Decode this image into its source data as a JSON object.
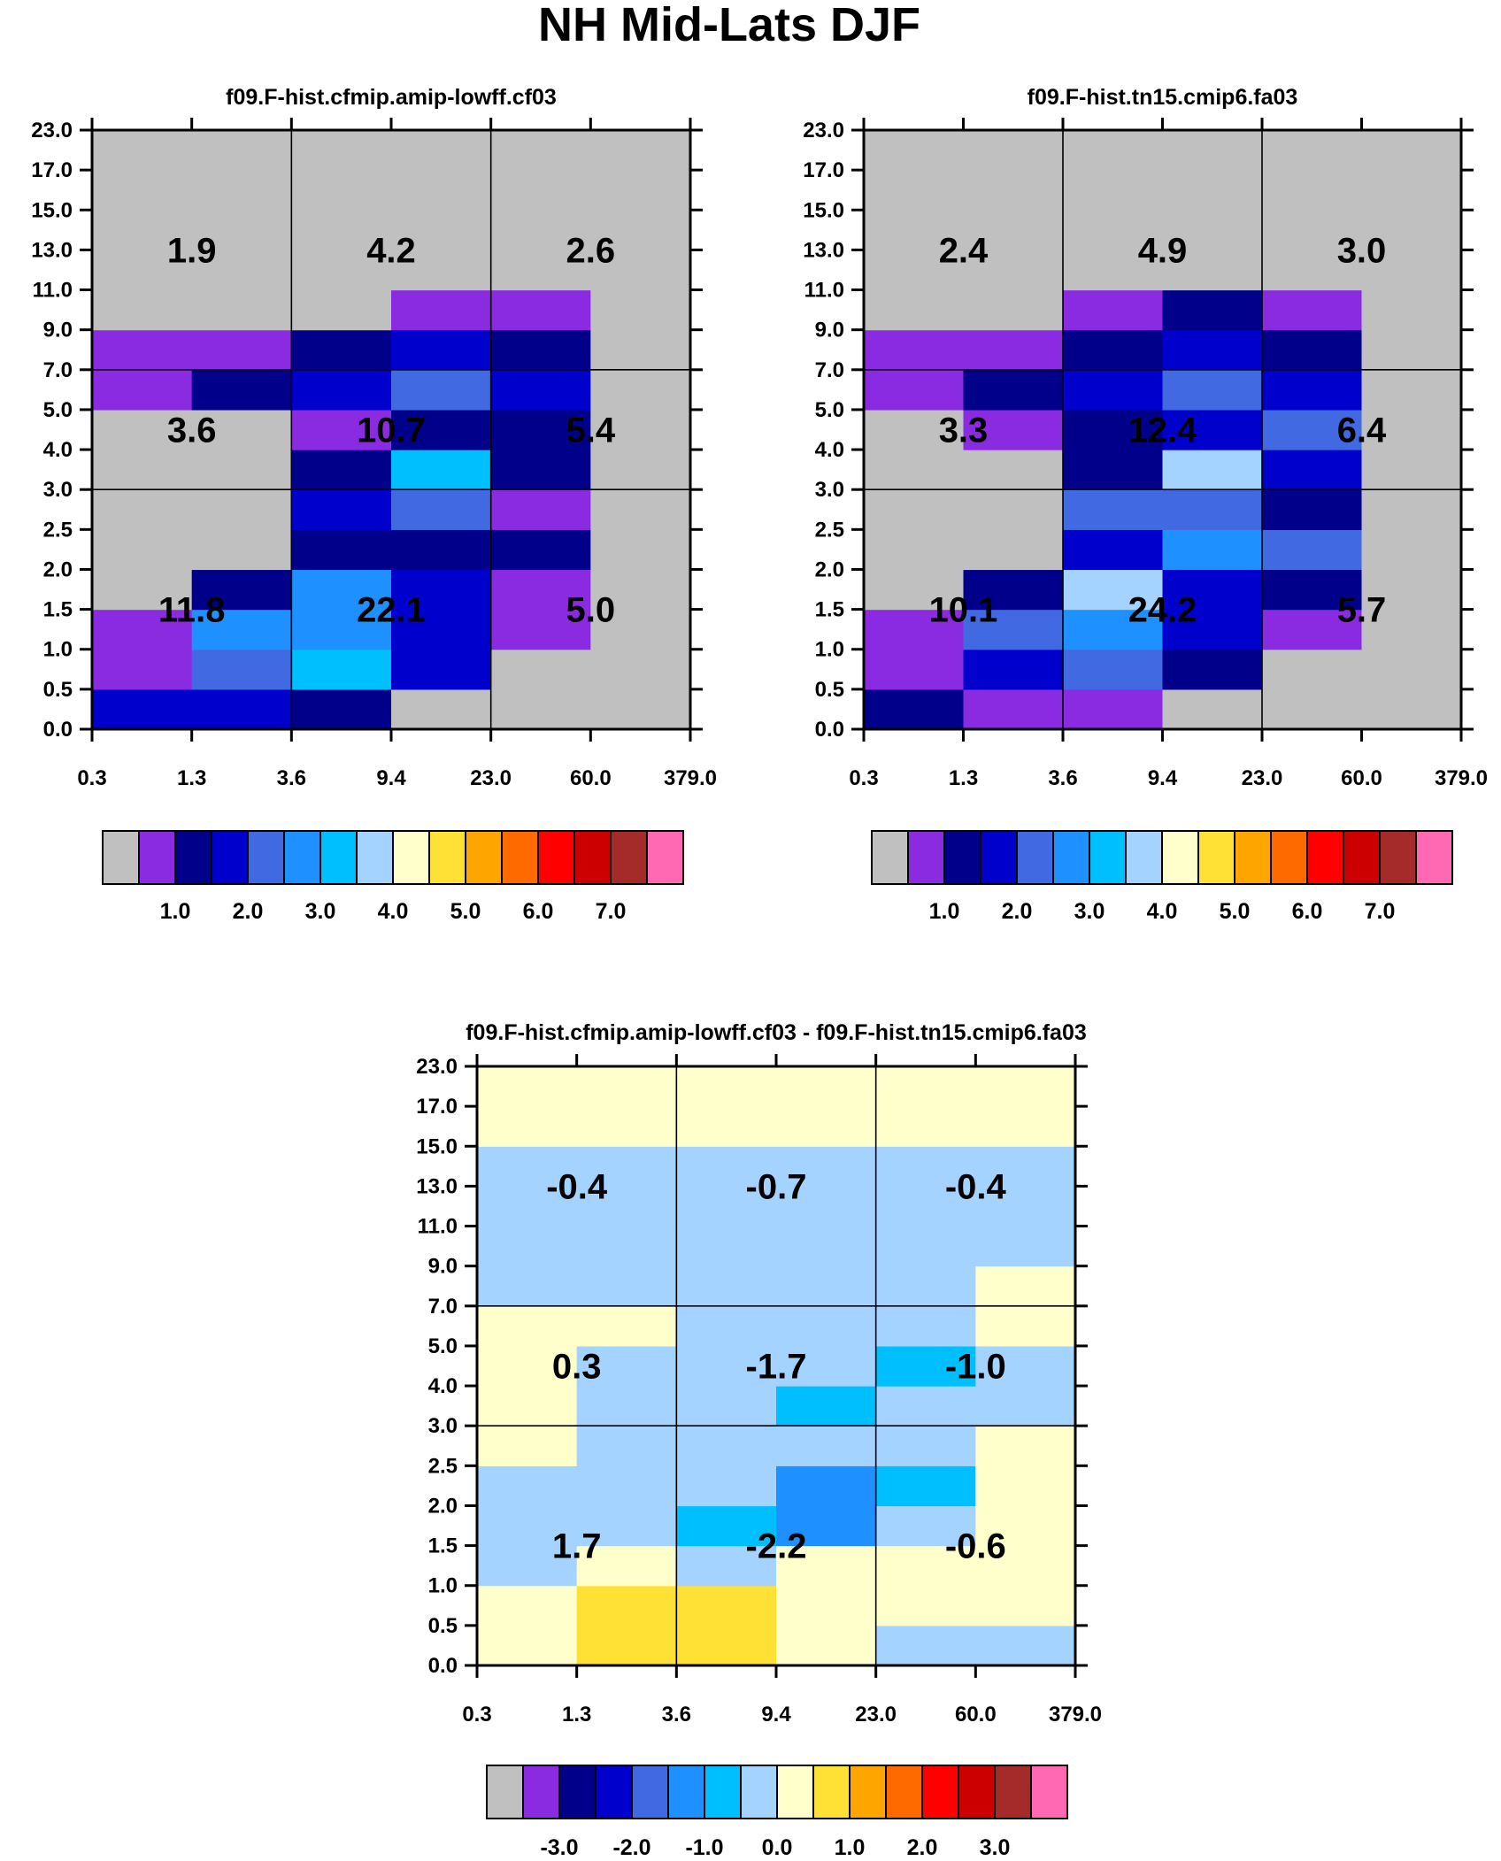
{
  "page": {
    "title": "NH Mid-Lats DJF"
  },
  "colors": {
    "palette": [
      "#c0c0c0",
      "#8a2be2",
      "#00008b",
      "#0000cd",
      "#4169e1",
      "#1e90ff",
      "#00bfff",
      "#a4d3ff",
      "#ffffcc",
      "#ffe135",
      "#ffa500",
      "#ff6a00",
      "#ff0000",
      "#cc0000",
      "#a52a2a",
      "#ff69b4"
    ]
  },
  "axes": {
    "x_ticks": [
      "0.3",
      "1.3",
      "3.6",
      "9.4",
      "23.0",
      "60.0",
      "379.0"
    ],
    "y_ticks": [
      "0.0",
      "0.5",
      "1.0",
      "1.5",
      "2.0",
      "2.5",
      "3.0",
      "4.0",
      "5.0",
      "7.0",
      "9.0",
      "11.0",
      "13.0",
      "15.0",
      "17.0",
      "23.0"
    ]
  },
  "chart_data": [
    {
      "type": "heatmap",
      "title": "f09.F-hist.cfmip.amip-lowff.cf03",
      "x_bin_edges": [
        "0.3",
        "1.3",
        "3.6",
        "9.4",
        "23.0",
        "60.0",
        "379.0"
      ],
      "y_bin_edges": [
        "0.0",
        "0.5",
        "1.0",
        "1.5",
        "2.0",
        "2.5",
        "3.0",
        "4.0",
        "5.0",
        "7.0",
        "9.0",
        "11.0",
        "13.0",
        "15.0",
        "17.0",
        "23.0"
      ],
      "cell_color_index_rows_bottom_to_top": [
        [
          3,
          3,
          2,
          0,
          0,
          0
        ],
        [
          1,
          4,
          6,
          3,
          0,
          0
        ],
        [
          1,
          5,
          5,
          3,
          1,
          0
        ],
        [
          0,
          2,
          5,
          3,
          1,
          0
        ],
        [
          0,
          0,
          2,
          2,
          2,
          0
        ],
        [
          0,
          0,
          3,
          4,
          1,
          0
        ],
        [
          0,
          0,
          2,
          6,
          2,
          0
        ],
        [
          0,
          0,
          1,
          2,
          2,
          0
        ],
        [
          1,
          2,
          3,
          4,
          3,
          0
        ],
        [
          1,
          1,
          2,
          3,
          2,
          0
        ],
        [
          0,
          0,
          0,
          1,
          1,
          0
        ],
        [
          0,
          0,
          0,
          0,
          0,
          0
        ],
        [
          0,
          0,
          0,
          0,
          0,
          0
        ],
        [
          0,
          0,
          0,
          0,
          0,
          0
        ],
        [
          0,
          0,
          0,
          0,
          0,
          0
        ]
      ],
      "box_values": [
        {
          "label": "1.9",
          "col": 0,
          "row": 2
        },
        {
          "label": "4.2",
          "col": 1,
          "row": 2
        },
        {
          "label": "2.6",
          "col": 2,
          "row": 2
        },
        {
          "label": "3.6",
          "col": 0,
          "row": 1
        },
        {
          "label": "10.7",
          "col": 1,
          "row": 1
        },
        {
          "label": "5.4",
          "col": 2,
          "row": 1
        },
        {
          "label": "11.8",
          "col": 0,
          "row": 0
        },
        {
          "label": "22.1",
          "col": 1,
          "row": 0
        },
        {
          "label": "5.0",
          "col": 2,
          "row": 0
        }
      ],
      "colorbar": {
        "labels": [
          "1.0",
          "2.0",
          "3.0",
          "4.0",
          "5.0",
          "6.0",
          "7.0"
        ]
      }
    },
    {
      "type": "heatmap",
      "title": "f09.F-hist.tn15.cmip6.fa03",
      "x_bin_edges": [
        "0.3",
        "1.3",
        "3.6",
        "9.4",
        "23.0",
        "60.0",
        "379.0"
      ],
      "y_bin_edges": [
        "0.0",
        "0.5",
        "1.0",
        "1.5",
        "2.0",
        "2.5",
        "3.0",
        "4.0",
        "5.0",
        "7.0",
        "9.0",
        "11.0",
        "13.0",
        "15.0",
        "17.0",
        "23.0"
      ],
      "cell_color_index_rows_bottom_to_top": [
        [
          2,
          1,
          1,
          0,
          0,
          0
        ],
        [
          1,
          3,
          4,
          2,
          0,
          0
        ],
        [
          1,
          4,
          5,
          3,
          1,
          0
        ],
        [
          0,
          2,
          7,
          3,
          2,
          0
        ],
        [
          0,
          0,
          3,
          5,
          4,
          0
        ],
        [
          0,
          0,
          4,
          4,
          2,
          0
        ],
        [
          0,
          0,
          2,
          7,
          3,
          0
        ],
        [
          0,
          1,
          2,
          3,
          4,
          0
        ],
        [
          1,
          2,
          3,
          4,
          3,
          0
        ],
        [
          1,
          1,
          2,
          3,
          2,
          0
        ],
        [
          0,
          0,
          1,
          2,
          1,
          0
        ],
        [
          0,
          0,
          0,
          0,
          0,
          0
        ],
        [
          0,
          0,
          0,
          0,
          0,
          0
        ],
        [
          0,
          0,
          0,
          0,
          0,
          0
        ],
        [
          0,
          0,
          0,
          0,
          0,
          0
        ]
      ],
      "box_values": [
        {
          "label": "2.4",
          "col": 0,
          "row": 2
        },
        {
          "label": "4.9",
          "col": 1,
          "row": 2
        },
        {
          "label": "3.0",
          "col": 2,
          "row": 2
        },
        {
          "label": "3.3",
          "col": 0,
          "row": 1
        },
        {
          "label": "12.4",
          "col": 1,
          "row": 1
        },
        {
          "label": "6.4",
          "col": 2,
          "row": 1
        },
        {
          "label": "10.1",
          "col": 0,
          "row": 0
        },
        {
          "label": "24.2",
          "col": 1,
          "row": 0
        },
        {
          "label": "5.7",
          "col": 2,
          "row": 0
        }
      ],
      "colorbar": {
        "labels": [
          "1.0",
          "2.0",
          "3.0",
          "4.0",
          "5.0",
          "6.0",
          "7.0"
        ]
      }
    },
    {
      "type": "heatmap",
      "title": "f09.F-hist.cfmip.amip-lowff.cf03 - f09.F-hist.tn15.cmip6.fa03",
      "x_bin_edges": [
        "0.3",
        "1.3",
        "3.6",
        "9.4",
        "23.0",
        "60.0",
        "379.0"
      ],
      "y_bin_edges": [
        "0.0",
        "0.5",
        "1.0",
        "1.5",
        "2.0",
        "2.5",
        "3.0",
        "4.0",
        "5.0",
        "7.0",
        "9.0",
        "11.0",
        "13.0",
        "15.0",
        "17.0",
        "23.0"
      ],
      "cell_color_index_rows_bottom_to_top": [
        [
          8,
          9,
          9,
          8,
          7,
          7
        ],
        [
          8,
          9,
          9,
          8,
          8,
          8
        ],
        [
          7,
          8,
          7,
          8,
          8,
          8
        ],
        [
          7,
          7,
          6,
          5,
          7,
          8
        ],
        [
          7,
          7,
          7,
          5,
          6,
          8
        ],
        [
          8,
          7,
          7,
          7,
          7,
          8
        ],
        [
          8,
          7,
          7,
          6,
          7,
          7
        ],
        [
          8,
          7,
          7,
          7,
          6,
          7
        ],
        [
          8,
          8,
          7,
          7,
          7,
          8
        ],
        [
          7,
          7,
          7,
          7,
          7,
          8
        ],
        [
          7,
          7,
          7,
          7,
          7,
          7
        ],
        [
          7,
          7,
          7,
          7,
          7,
          7
        ],
        [
          7,
          7,
          7,
          7,
          7,
          7
        ],
        [
          8,
          8,
          8,
          8,
          8,
          8
        ],
        [
          8,
          8,
          8,
          8,
          8,
          8
        ]
      ],
      "box_values": [
        {
          "label": "-0.4",
          "col": 0,
          "row": 2
        },
        {
          "label": "-0.7",
          "col": 1,
          "row": 2
        },
        {
          "label": "-0.4",
          "col": 2,
          "row": 2
        },
        {
          "label": "0.3",
          "col": 0,
          "row": 1
        },
        {
          "label": "-1.7",
          "col": 1,
          "row": 1
        },
        {
          "label": "-1.0",
          "col": 2,
          "row": 1
        },
        {
          "label": "1.7",
          "col": 0,
          "row": 0
        },
        {
          "label": "-2.2",
          "col": 1,
          "row": 0
        },
        {
          "label": "-0.6",
          "col": 2,
          "row": 0
        }
      ],
      "colorbar": {
        "labels": [
          "-3.0",
          "-2.0",
          "-1.0",
          "0.0",
          "1.0",
          "2.0",
          "3.0"
        ]
      }
    }
  ]
}
